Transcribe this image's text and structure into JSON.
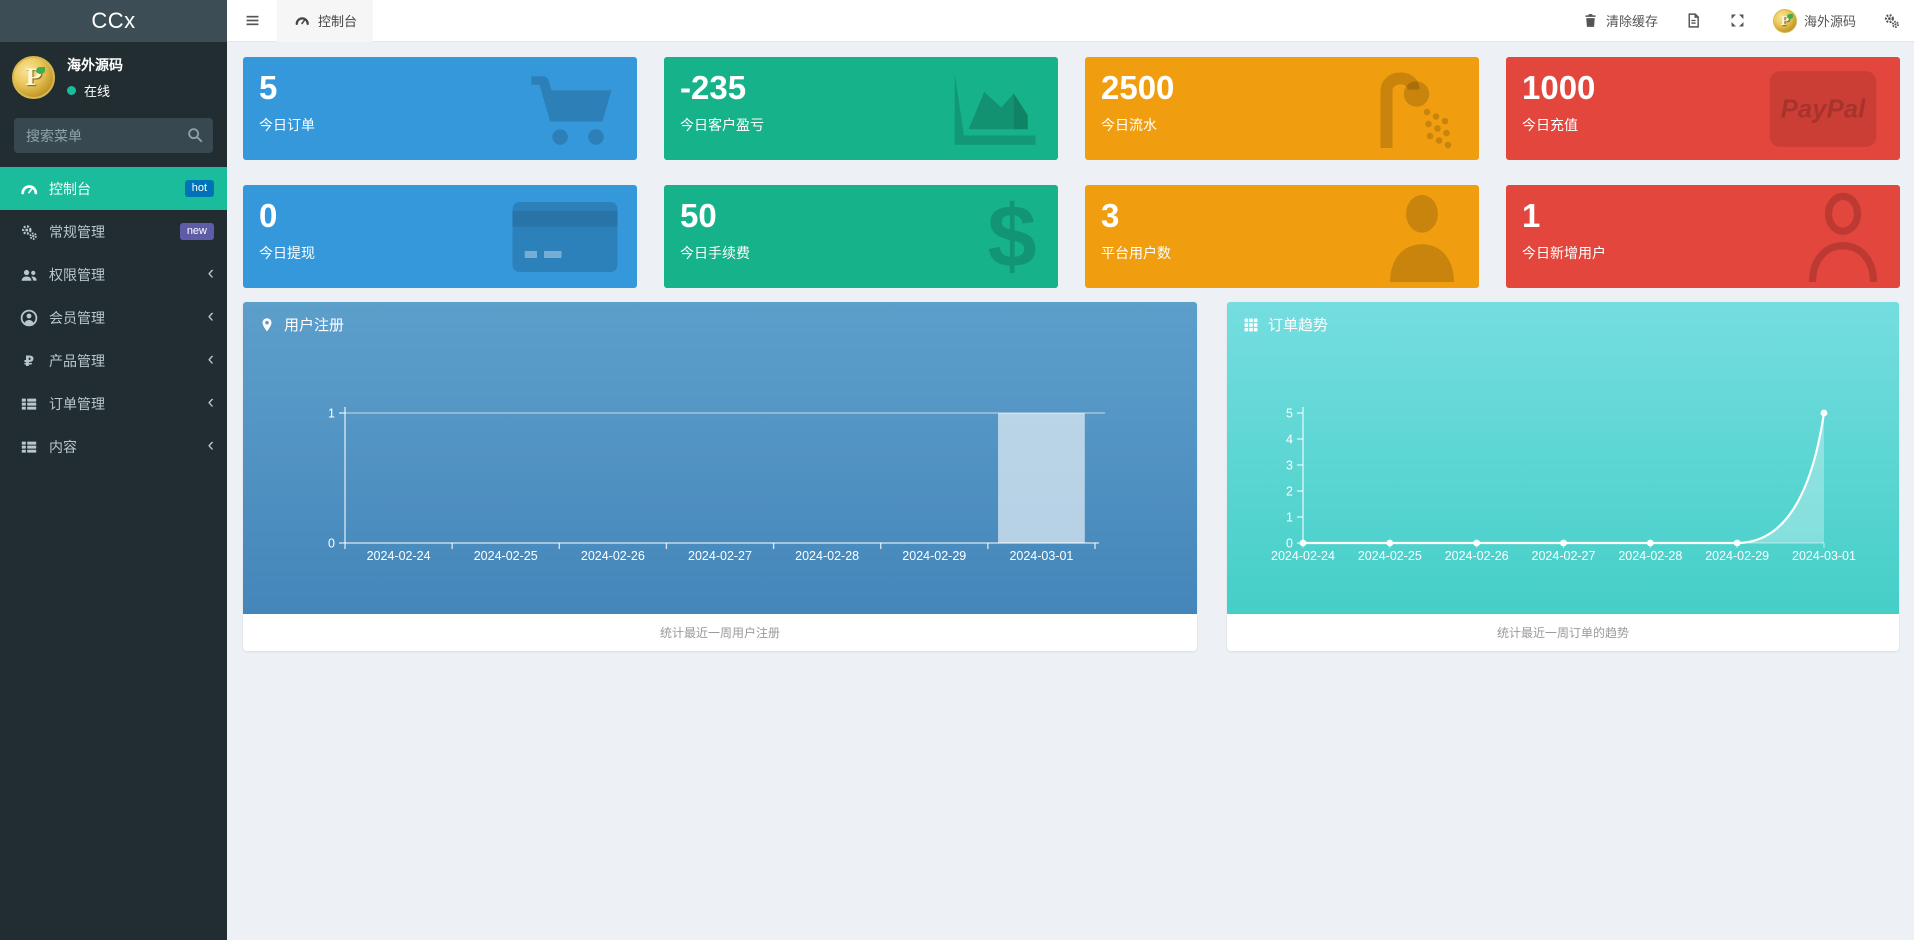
{
  "app": {
    "logo": "CCx"
  },
  "sidebar": {
    "user": {
      "name": "海外源码",
      "status": "在线",
      "status_color": "#1abc9c"
    },
    "search_placeholder": "搜索菜单",
    "items": [
      {
        "label": "控制台",
        "icon": "tachometer-icon",
        "badge": "hot",
        "active": true
      },
      {
        "label": "常规管理",
        "icon": "cogs-icon",
        "badge": "new"
      },
      {
        "label": "权限管理",
        "icon": "users-icon",
        "chevron": true
      },
      {
        "label": "会员管理",
        "icon": "user-circle-icon",
        "chevron": true
      },
      {
        "label": "产品管理",
        "icon": "ruble-icon",
        "icon_text": "₽",
        "chevron": true
      },
      {
        "label": "订单管理",
        "icon": "th-list-icon",
        "chevron": true
      },
      {
        "label": "内容",
        "icon": "th-list-icon",
        "chevron": true
      }
    ],
    "badge_colors": {
      "hot": "#0073b7",
      "new": "#5e5ca7"
    }
  },
  "navbar": {
    "tab_label": "控制台",
    "clear_cache_label": "清除缓存",
    "username": "海外源码"
  },
  "cards": [
    {
      "value": "5",
      "label": "今日订单",
      "color": "#3598db",
      "icon": "cart-icon"
    },
    {
      "value": "-235",
      "label": "今日客户盈亏",
      "color": "#16b289",
      "icon": "area-chart-icon"
    },
    {
      "value": "2500",
      "label": "今日流水",
      "color": "#f09e10",
      "icon": "shower-icon"
    },
    {
      "value": "1000",
      "label": "今日充值",
      "color": "#e2463c",
      "icon": "paypal-icon",
      "icon_text": "PayPal"
    },
    {
      "value": "0",
      "label": "今日提现",
      "color": "#3598db",
      "icon": "credit-card-icon"
    },
    {
      "value": "50",
      "label": "今日手续费",
      "color": "#16b289",
      "icon": "dollar-icon",
      "icon_text": "$"
    },
    {
      "value": "3",
      "label": "平台用户数",
      "color": "#f09e10",
      "icon": "user-solid-icon"
    },
    {
      "value": "1",
      "label": "今日新增用户",
      "color": "#e2463c",
      "icon": "user-outline-icon"
    }
  ],
  "chart_data": [
    {
      "type": "bar",
      "title": "用户注册",
      "footer": "统计最近一周用户注册",
      "categories": [
        "2024-02-24",
        "2024-02-25",
        "2024-02-26",
        "2024-02-27",
        "2024-02-28",
        "2024-02-29",
        "2024-03-01"
      ],
      "values": [
        0,
        0,
        0,
        0,
        0,
        0,
        1
      ],
      "ylim": [
        0,
        1
      ],
      "yticks": [
        0,
        1
      ],
      "grid": "top-line-only",
      "legend": "none",
      "panel_gradient": [
        "#5d9fcb",
        "#4283b8"
      ],
      "bar_color": "rgba(255,255,255,0.6)"
    },
    {
      "type": "line",
      "title": "订单趋势",
      "footer": "统计最近一周订单的趋势",
      "categories": [
        "2024-02-24",
        "2024-02-25",
        "2024-02-26",
        "2024-02-27",
        "2024-02-28",
        "2024-02-29",
        "2024-03-01"
      ],
      "values": [
        0,
        0,
        0,
        0,
        0,
        0,
        5
      ],
      "ylim": [
        0,
        5
      ],
      "yticks": [
        0,
        1,
        2,
        3,
        4,
        5
      ],
      "grid": "off",
      "legend": "none",
      "panel_gradient": [
        "#75dde0",
        "#3fcdc4"
      ],
      "line_color": "#ffffff",
      "area_color": "rgba(255,255,255,0.3)"
    }
  ]
}
